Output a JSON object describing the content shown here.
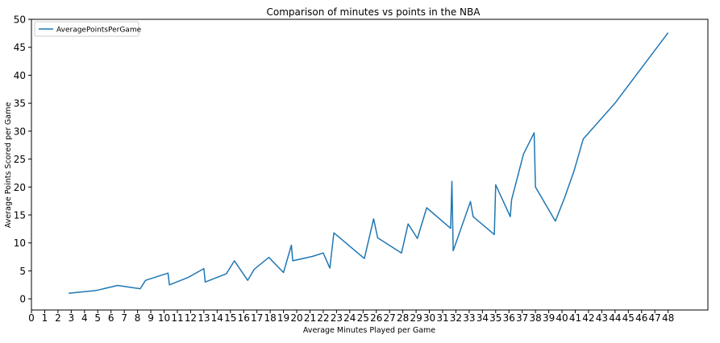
{
  "chart_data": {
    "type": "line",
    "title": "Comparison of minutes vs points in the NBA",
    "xlabel": "Average Minutes Played per Game",
    "ylabel": "Average Points Scored per Game",
    "xlim": [
      0,
      51
    ],
    "ylim": [
      -2,
      50
    ],
    "xticks": [
      0,
      1,
      2,
      3,
      4,
      5,
      6,
      7,
      8,
      9,
      10,
      11,
      12,
      13,
      14,
      15,
      16,
      17,
      18,
      19,
      20,
      21,
      22,
      23,
      24,
      25,
      26,
      27,
      28,
      29,
      30,
      31,
      32,
      33,
      34,
      35,
      36,
      37,
      38,
      39,
      40,
      41,
      42,
      43,
      44,
      45,
      46,
      47,
      48
    ],
    "yticks": [
      0,
      5,
      10,
      15,
      20,
      25,
      30,
      35,
      40,
      45,
      50
    ],
    "legend_position": "upper-left",
    "grid": false,
    "colors": {
      "line": "#1f77b4",
      "axis": "#000000",
      "background": "#ffffff"
    },
    "series": [
      {
        "name": "AveragePointsPerGame",
        "x": [
          2.8,
          4.9,
          6.5,
          8.2,
          8.6,
          10.3,
          10.4,
          11.8,
          13.0,
          13.1,
          14.7,
          15.3,
          16.3,
          16.8,
          17.9,
          19.0,
          19.6,
          19.7,
          21.2,
          22.0,
          22.5,
          22.8,
          25.1,
          25.8,
          26.1,
          27.9,
          28.4,
          29.1,
          29.8,
          31.6,
          31.7,
          31.8,
          33.1,
          33.3,
          34.9,
          35.0,
          36.1,
          36.2,
          37.1,
          37.9,
          38.0,
          39.5,
          40.2,
          40.9,
          41.6,
          44.0,
          48.0
        ],
        "y": [
          1.0,
          1.5,
          2.4,
          1.8,
          3.3,
          4.6,
          2.5,
          3.8,
          5.4,
          3.0,
          4.5,
          6.8,
          3.3,
          5.3,
          7.4,
          4.7,
          9.6,
          6.8,
          7.6,
          8.2,
          5.5,
          11.8,
          7.2,
          14.3,
          10.9,
          8.2,
          13.4,
          10.8,
          16.3,
          12.6,
          21.0,
          8.6,
          17.4,
          14.7,
          11.5,
          20.4,
          14.7,
          17.7,
          25.9,
          29.7,
          20.0,
          13.9,
          18.1,
          22.8,
          28.6,
          35.0,
          47.6
        ]
      }
    ]
  }
}
